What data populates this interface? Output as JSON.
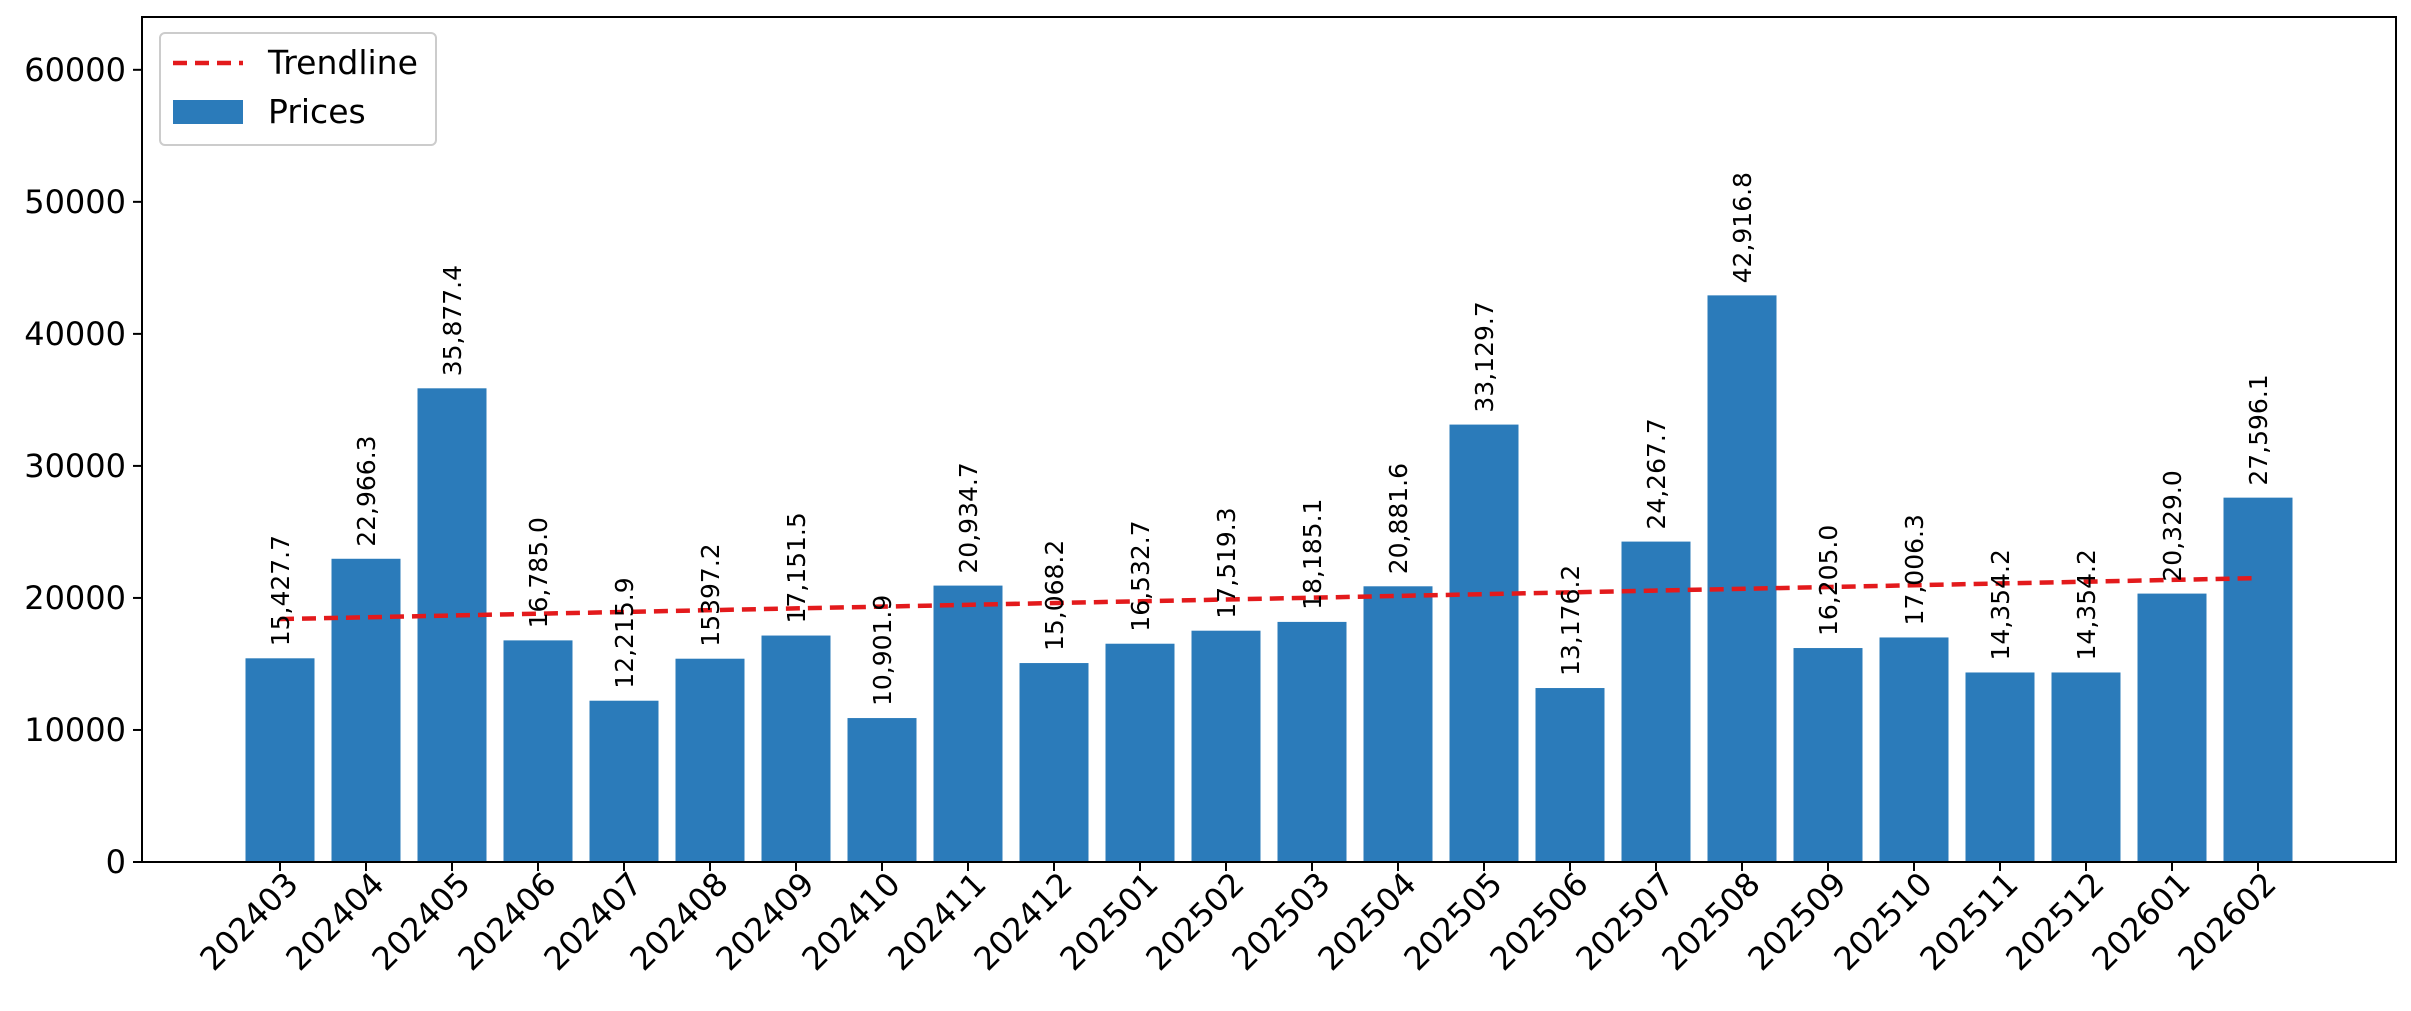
{
  "chart_data": {
    "type": "bar",
    "title": "",
    "xlabel": "",
    "ylabel": "",
    "ylim": [
      0,
      64000
    ],
    "yticks": [
      0,
      10000,
      20000,
      30000,
      40000,
      50000,
      60000
    ],
    "grid": false,
    "legend_position": "top-left",
    "categories": [
      "202403",
      "202404",
      "202405",
      "202406",
      "202407",
      "202408",
      "202409",
      "202410",
      "202411",
      "202412",
      "202501",
      "202502",
      "202503",
      "202504",
      "202505",
      "202506",
      "202507",
      "202508",
      "202509",
      "202510",
      "202511",
      "202512",
      "202601",
      "202602"
    ],
    "series": [
      {
        "name": "Prices",
        "kind": "bar",
        "color": "#2b7bba",
        "values": [
          15427.7,
          22966.3,
          35877.4,
          16785.0,
          12215.9,
          15397.2,
          17151.5,
          10901.9,
          20934.7,
          15068.2,
          16532.7,
          17519.3,
          18185.1,
          20881.6,
          33129.7,
          13176.2,
          24267.7,
          42916.8,
          16205.0,
          17006.3,
          14354.2,
          14354.2,
          20329.0,
          27596.1
        ],
        "labels": [
          "15,427.7",
          "22,966.3",
          "35,877.4",
          "16,785.0",
          "12,215.9",
          "15397.2",
          "17,151.5",
          "10,901.9",
          "20,934.7",
          "15,068.2",
          "16,532.7",
          "17,519.3",
          "18,185.1",
          "20,881.6",
          "33,129.7",
          "13,176.2",
          "24,267.7",
          "42,916.8",
          "16,205.0",
          "17,006.3",
          "14,354.2",
          "14,354.2",
          "20,329.0",
          "27,596.1"
        ]
      },
      {
        "name": "Trendline",
        "kind": "line",
        "style": "dashed",
        "color": "#e31a1c",
        "start": 18400,
        "end": 21500
      }
    ]
  }
}
